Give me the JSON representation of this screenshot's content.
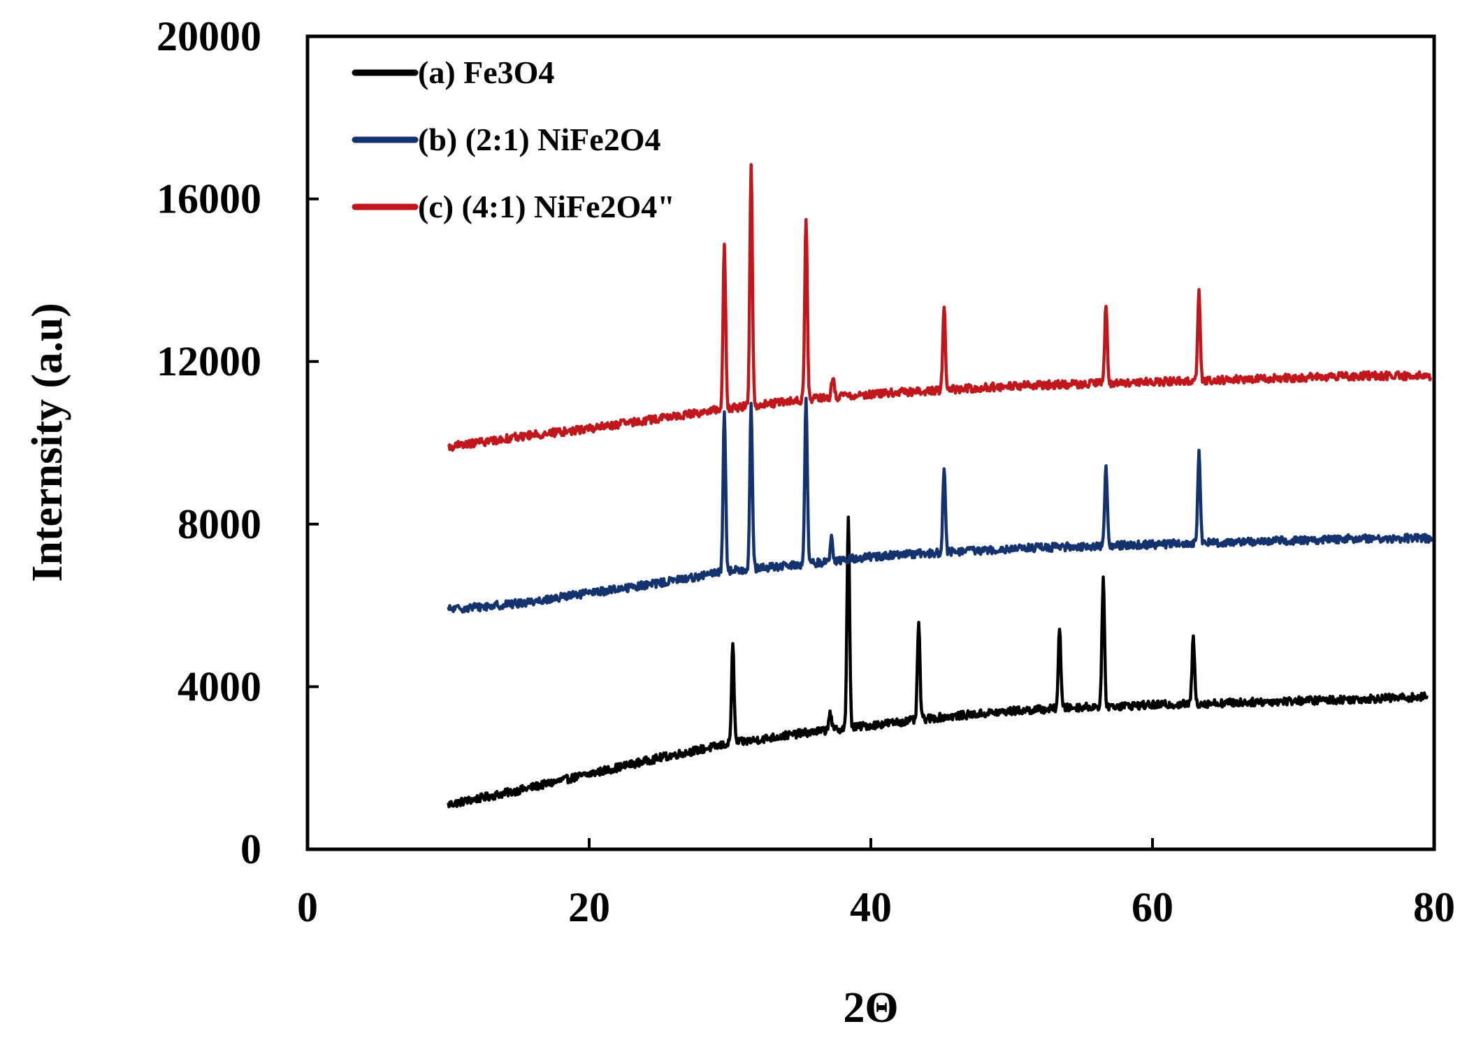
{
  "chart_data": {
    "type": "line",
    "title": "",
    "xlabel": "2Θ",
    "ylabel": "Internsity (a.u)",
    "xlim": [
      0,
      80
    ],
    "ylim": [
      0,
      20000
    ],
    "x_ticks": [
      0,
      20,
      40,
      60,
      80
    ],
    "y_ticks": [
      0,
      4000,
      8000,
      12000,
      16000,
      20000
    ],
    "x_tick_labels": [
      "0",
      "20",
      "40",
      "60",
      "80"
    ],
    "y_tick_labels": [
      "0",
      "4000",
      "8000",
      "12000",
      "16000",
      "20000"
    ],
    "grid": false,
    "legend_position": "top-left",
    "series": [
      {
        "name": "(a) Fe3O4",
        "color": "#000000",
        "x_range": [
          10,
          79.5
        ],
        "baseline": [
          [
            10,
            1100
          ],
          [
            15,
            1450
          ],
          [
            20,
            1850
          ],
          [
            25,
            2250
          ],
          [
            30,
            2600
          ],
          [
            35,
            2850
          ],
          [
            40,
            3050
          ],
          [
            45,
            3250
          ],
          [
            50,
            3400
          ],
          [
            55,
            3500
          ],
          [
            60,
            3550
          ],
          [
            65,
            3600
          ],
          [
            70,
            3650
          ],
          [
            75,
            3700
          ],
          [
            79.5,
            3750
          ]
        ],
        "peaks": [
          {
            "x": 30.2,
            "y": 5000
          },
          {
            "x": 37.1,
            "y": 3400
          },
          {
            "x": 38.4,
            "y": 8100
          },
          {
            "x": 43.4,
            "y": 5550
          },
          {
            "x": 53.4,
            "y": 5450
          },
          {
            "x": 56.5,
            "y": 6600
          },
          {
            "x": 62.9,
            "y": 5200
          }
        ]
      },
      {
        "name": "(b) (2:1) NiFe2O4",
        "color": "#14326e",
        "x_range": [
          10,
          79.8
        ],
        "baseline": [
          [
            10,
            5900
          ],
          [
            15,
            6050
          ],
          [
            20,
            6300
          ],
          [
            25,
            6550
          ],
          [
            30,
            6850
          ],
          [
            35,
            7000
          ],
          [
            40,
            7200
          ],
          [
            45,
            7300
          ],
          [
            50,
            7400
          ],
          [
            55,
            7450
          ],
          [
            60,
            7500
          ],
          [
            65,
            7550
          ],
          [
            70,
            7600
          ],
          [
            75,
            7650
          ],
          [
            79.8,
            7650
          ]
        ],
        "peaks": [
          {
            "x": 29.6,
            "y": 10800
          },
          {
            "x": 31.5,
            "y": 10900
          },
          {
            "x": 35.4,
            "y": 11050
          },
          {
            "x": 37.2,
            "y": 7650
          },
          {
            "x": 45.2,
            "y": 9350
          },
          {
            "x": 56.7,
            "y": 9400
          },
          {
            "x": 63.3,
            "y": 9750
          }
        ]
      },
      {
        "name": "(c) (4:1) NiFe2O4\"",
        "color": "#c0161c",
        "x_range": [
          10,
          79.8
        ],
        "baseline": [
          [
            10,
            9900
          ],
          [
            15,
            10150
          ],
          [
            20,
            10350
          ],
          [
            25,
            10600
          ],
          [
            30,
            10850
          ],
          [
            35,
            11050
          ],
          [
            40,
            11200
          ],
          [
            45,
            11300
          ],
          [
            50,
            11400
          ],
          [
            55,
            11450
          ],
          [
            60,
            11500
          ],
          [
            65,
            11550
          ],
          [
            70,
            11600
          ],
          [
            75,
            11650
          ],
          [
            79.8,
            11650
          ]
        ],
        "peaks": [
          {
            "x": 29.6,
            "y": 14900
          },
          {
            "x": 31.5,
            "y": 16850
          },
          {
            "x": 35.4,
            "y": 15550
          },
          {
            "x": 37.3,
            "y": 11650
          },
          {
            "x": 45.2,
            "y": 13350
          },
          {
            "x": 56.7,
            "y": 13400
          },
          {
            "x": 63.3,
            "y": 13750
          }
        ]
      }
    ]
  }
}
